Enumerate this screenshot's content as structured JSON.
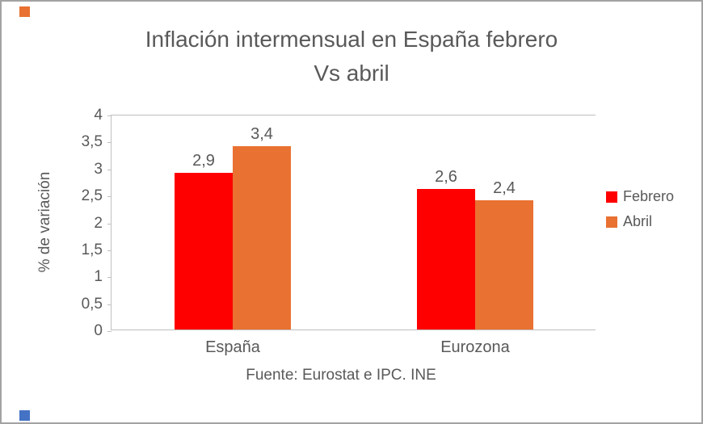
{
  "frame": {
    "border_color": "#a3a3a3",
    "corner_top_color": "#e97132",
    "corner_bottom_color": "#4472c4"
  },
  "chart_data": {
    "type": "bar",
    "title": "Inflación intermensual en España febrero Vs abril",
    "title_lines": [
      "Inflación intermensual en España febrero",
      "Vs abril"
    ],
    "categories": [
      "España",
      "Eurozona"
    ],
    "series": [
      {
        "name": "Febrero",
        "color": "#fe0000",
        "values": [
          2.9,
          2.6
        ]
      },
      {
        "name": "Abril",
        "color": "#e97132",
        "values": [
          3.4,
          2.4
        ]
      }
    ],
    "value_labels": [
      [
        "2,9",
        "2,6"
      ],
      [
        "3,4",
        "2,4"
      ]
    ],
    "ylabel": "% de variación",
    "xlabel": "",
    "ylim": [
      0,
      4
    ],
    "ytick_step": 0.5,
    "yticks": [
      "4",
      "3,5",
      "3",
      "2,5",
      "2",
      "1,5",
      "1",
      "0,5",
      "0"
    ],
    "grid": false,
    "legend_position": "right",
    "footer": "Fuente: Eurostat e IPC. INE"
  }
}
